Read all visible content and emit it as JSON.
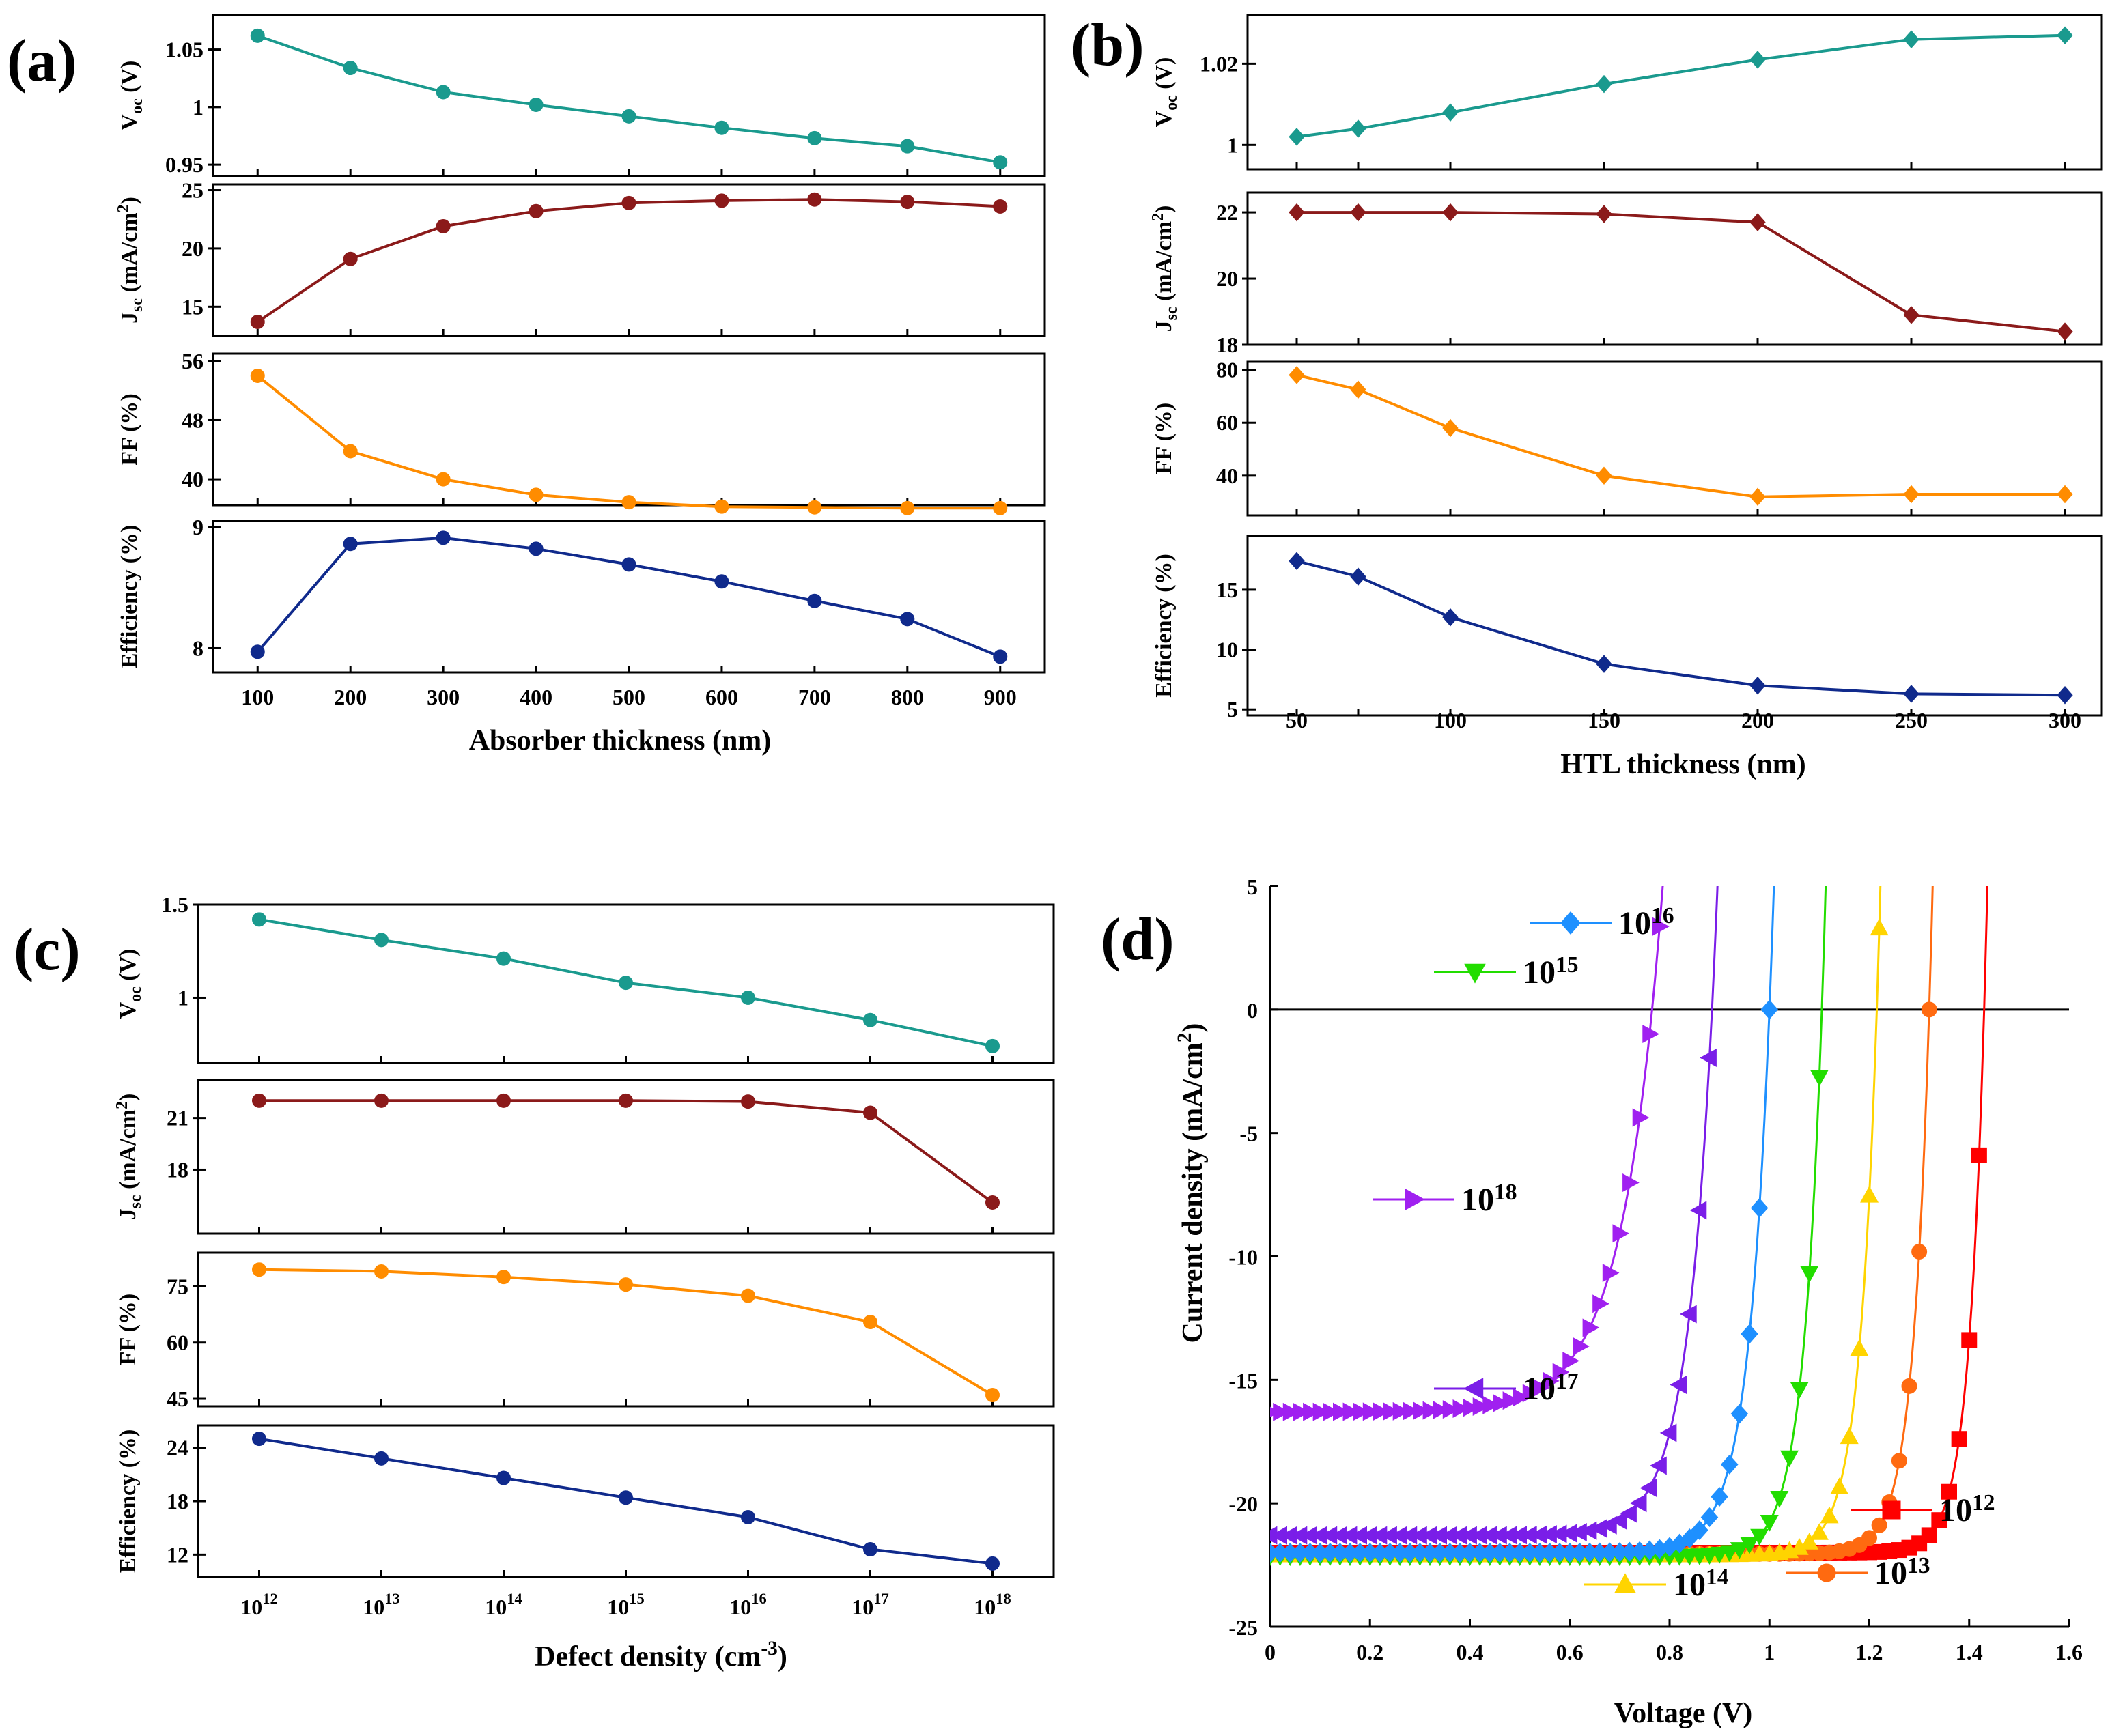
{
  "panels": {
    "a": {
      "label": "(a)",
      "xlabel": "Absorber thickness (nm)"
    },
    "b": {
      "label": "(b)",
      "xlabel": "HTL thickness (nm)"
    },
    "c": {
      "label": "(c)",
      "xlabel": "Defect density (cm^-3)"
    },
    "d": {
      "label": "(d)",
      "xlabel": "Voltage (V)",
      "ylabel": "Current density (mA/cm^2)"
    }
  },
  "chart_data": [
    {
      "id": "a",
      "type": "line",
      "title": "",
      "xlabel": "Absorber thickness (nm)",
      "x": [
        100,
        200,
        300,
        400,
        500,
        600,
        700,
        800,
        900
      ],
      "xticks": [
        "100",
        "200",
        "300",
        "400",
        "500",
        "600",
        "700",
        "800",
        "900"
      ],
      "xlim": [
        52,
        948
      ],
      "subplots": [
        {
          "ylabel": "Voc (V)",
          "ylim": [
            0.94,
            1.08
          ],
          "yticks": [
            0.95,
            1,
            1.05
          ],
          "yticklabels": [
            "0.95",
            "1",
            "1.05"
          ],
          "color": "#1a9a8e",
          "marker": "circle",
          "values": [
            1.062,
            1.034,
            1.013,
            1.002,
            0.992,
            0.982,
            0.973,
            0.966,
            0.952
          ]
        },
        {
          "ylabel": "Jsc (mA/cm2)",
          "ylim": [
            12.5,
            25.5
          ],
          "yticks": [
            15,
            20,
            25
          ],
          "yticklabels": [
            "15",
            "20",
            "25"
          ],
          "color": "#8b1a1a",
          "marker": "circle",
          "values": [
            13.7,
            19.1,
            21.9,
            23.2,
            23.9,
            24.1,
            24.2,
            24.0,
            23.6
          ]
        },
        {
          "ylabel": "FF (%)",
          "ylim": [
            36.5,
            57
          ],
          "yticks": [
            40,
            48,
            56
          ],
          "yticklabels": [
            "40",
            "48",
            "56"
          ],
          "color": "#ff8c00",
          "marker": "circle",
          "values": [
            54.0,
            43.8,
            40.0,
            37.9,
            36.9,
            36.3,
            36.2,
            36.1,
            36.1
          ]
        },
        {
          "ylabel": "Efficiency (%)",
          "ylim": [
            7.8,
            9.05
          ],
          "yticks": [
            8,
            9
          ],
          "yticklabels": [
            "8",
            "9"
          ],
          "color": "#102a8c",
          "marker": "circle",
          "values": [
            7.97,
            8.86,
            8.91,
            8.82,
            8.69,
            8.55,
            8.39,
            8.24,
            7.93
          ]
        }
      ]
    },
    {
      "id": "b",
      "type": "line",
      "title": "",
      "xlabel": "HTL thickness (nm)",
      "x": [
        50,
        70,
        100,
        150,
        200,
        250,
        300
      ],
      "xticks": [
        "50",
        "100",
        "150",
        "200",
        "250",
        "300"
      ],
      "xlim": [
        34,
        312
      ],
      "subplots": [
        {
          "ylabel": "Voc (V)",
          "ylim": [
            0.994,
            1.032
          ],
          "yticks": [
            1,
            1.02
          ],
          "yticklabels": [
            "1",
            "1.02"
          ],
          "color": "#1a9a8e",
          "marker": "diamond",
          "values": [
            1.002,
            1.004,
            1.008,
            1.015,
            1.021,
            1.026,
            1.027
          ]
        },
        {
          "ylabel": "Jsc (mA/cm2)",
          "ylim": [
            18.0,
            22.6
          ],
          "yticks": [
            18,
            20,
            22
          ],
          "yticklabels": [
            "18",
            "20",
            "22"
          ],
          "color": "#8b1a1a",
          "marker": "diamond",
          "values": [
            22.0,
            22.0,
            22.0,
            21.95,
            21.7,
            18.9,
            18.4
          ]
        },
        {
          "ylabel": "FF (%)",
          "ylim": [
            25,
            83
          ],
          "yticks": [
            40,
            60,
            80
          ],
          "yticklabels": [
            "40",
            "60",
            "80"
          ],
          "color": "#ff8c00",
          "marker": "diamond",
          "values": [
            78.0,
            72.5,
            58.0,
            40.0,
            32.0,
            33.0,
            33.0
          ]
        },
        {
          "ylabel": "Efficiency (%)",
          "ylim": [
            4.5,
            19.5
          ],
          "yticks": [
            5,
            10,
            15
          ],
          "yticklabels": [
            "5",
            "10",
            "15"
          ],
          "color": "#102a8c",
          "marker": "diamond",
          "values": [
            17.4,
            16.1,
            12.7,
            8.8,
            7.0,
            6.3,
            6.2
          ]
        }
      ]
    },
    {
      "id": "c",
      "type": "line",
      "title": "",
      "xlabel": "Defect density (cm^-3)",
      "x": [
        12,
        13,
        14,
        15,
        16,
        17,
        18
      ],
      "xticks": [
        "10^12",
        "10^13",
        "10^14",
        "10^15",
        "10^16",
        "10^17",
        "10^18"
      ],
      "xlim": [
        11.5,
        18.5
      ],
      "subplots": [
        {
          "ylabel": "Voc (V)",
          "ylim": [
            0.65,
            1.5
          ],
          "yticks": [
            1,
            1.5
          ],
          "yticklabels": [
            "1",
            "1.5"
          ],
          "color": "#1a9a8e",
          "marker": "circle",
          "values": [
            1.42,
            1.31,
            1.21,
            1.08,
            1.0,
            0.88,
            0.74
          ]
        },
        {
          "ylabel": "Jsc (mA/cm2)",
          "ylim": [
            14.3,
            23.2
          ],
          "yticks": [
            18,
            21
          ],
          "yticklabels": [
            "18",
            "21"
          ],
          "color": "#8b1a1a",
          "marker": "circle",
          "values": [
            22.0,
            22.0,
            22.0,
            22.0,
            21.95,
            21.3,
            16.1
          ]
        },
        {
          "ylabel": "FF (%)",
          "ylim": [
            43,
            84
          ],
          "yticks": [
            45,
            60,
            75
          ],
          "yticklabels": [
            "45",
            "60",
            "75"
          ],
          "color": "#ff8c00",
          "marker": "circle",
          "values": [
            79.5,
            79.0,
            77.5,
            75.5,
            72.5,
            65.5,
            46.0
          ]
        },
        {
          "ylabel": "Efficiency (%)",
          "ylim": [
            9.5,
            26.5
          ],
          "yticks": [
            12,
            18,
            24
          ],
          "yticklabels": [
            "12",
            "18",
            "24"
          ],
          "color": "#102a8c",
          "marker": "circle",
          "values": [
            25.0,
            22.8,
            20.6,
            18.4,
            16.2,
            12.6,
            11.0
          ]
        }
      ]
    },
    {
      "id": "d",
      "type": "line",
      "title": "",
      "xlabel": "Voltage (V)",
      "ylabel": "Current density (mA/cm^2)",
      "xlim": [
        0,
        1.6
      ],
      "ylim": [
        -25,
        5
      ],
      "xticks": [
        0,
        0.2,
        0.4,
        0.6,
        0.8,
        1,
        1.2,
        1.4,
        1.6
      ],
      "xticklabels": [
        "0",
        "0.2",
        "0.4",
        "0.6",
        "0.8",
        "1",
        "1.2",
        "1.4",
        "1.6"
      ],
      "yticks": [
        -25,
        -20,
        -15,
        -10,
        -5,
        0,
        5
      ],
      "yticklabels": [
        "-25",
        "-20",
        "-15",
        "-10",
        "-5",
        "0",
        "5"
      ],
      "series": [
        {
          "name": "10^12",
          "color": "#ff0000",
          "marker": "square",
          "jsc": 22.0,
          "voc": 1.43,
          "a": 0.032
        },
        {
          "name": "10^13",
          "color": "#ff6a10",
          "marker": "circle",
          "jsc": 22.05,
          "voc": 1.32,
          "a": 0.034
        },
        {
          "name": "10^14",
          "color": "#ffd400",
          "marker": "triangle-up",
          "jsc": 22.1,
          "voc": 1.215,
          "a": 0.036
        },
        {
          "name": "10^15",
          "color": "#22dd00",
          "marker": "triangle-down",
          "jsc": 22.15,
          "voc": 1.105,
          "a": 0.038
        },
        {
          "name": "10^16",
          "color": "#1e90ff",
          "marker": "diamond",
          "jsc": 22.0,
          "voc": 1.0,
          "a": 0.044
        },
        {
          "name": "10^17",
          "color": "#7a1ee8",
          "marker": "triangle-left",
          "jsc": 21.3,
          "voc": 0.885,
          "a": 0.052
        },
        {
          "name": "10^18",
          "color": "#a020f0",
          "marker": "triangle-right",
          "jsc": 16.3,
          "voc": 0.765,
          "a": 0.08
        }
      ],
      "legend": [
        {
          "name": "10^16",
          "base": "10",
          "exp": "16",
          "color": "#1e90ff",
          "marker": "diamond"
        },
        {
          "name": "10^15",
          "base": "10",
          "exp": "15",
          "color": "#22dd00",
          "marker": "triangle-down"
        },
        {
          "name": "10^18",
          "base": "10",
          "exp": "18",
          "color": "#a020f0",
          "marker": "triangle-right"
        },
        {
          "name": "10^17",
          "base": "10",
          "exp": "17",
          "color": "#7a1ee8",
          "marker": "triangle-left"
        },
        {
          "name": "10^12",
          "base": "10",
          "exp": "12",
          "color": "#ff0000",
          "marker": "square"
        },
        {
          "name": "10^14",
          "base": "10",
          "exp": "14",
          "color": "#ffd400",
          "marker": "triangle-up"
        },
        {
          "name": "10^13",
          "base": "10",
          "exp": "13",
          "color": "#ff6a10",
          "marker": "circle"
        }
      ]
    }
  ]
}
